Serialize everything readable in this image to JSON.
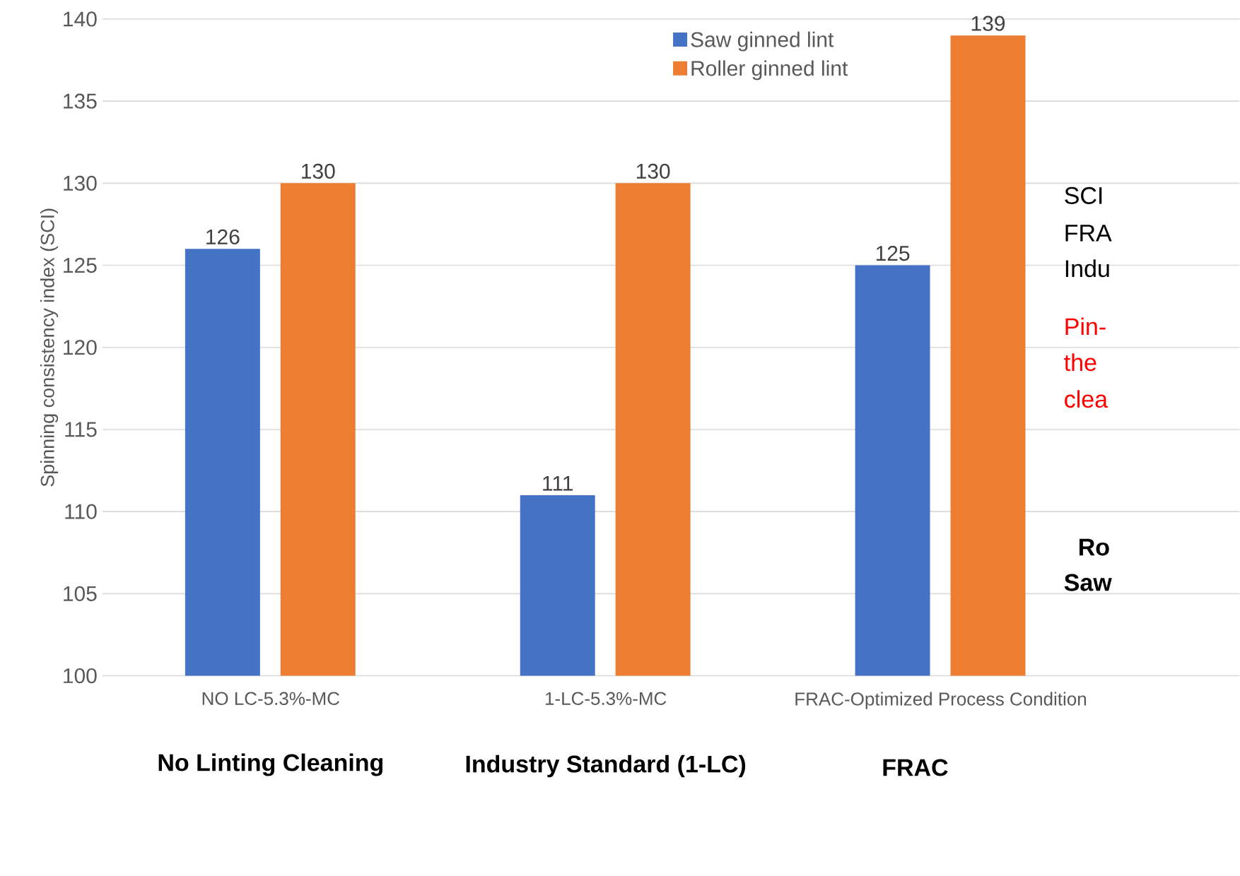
{
  "chart_data": {
    "type": "bar",
    "ylabel": "Spinning consistency index (SCI)",
    "categories": [
      "NO LC-5.3%-MC",
      "1-LC-5.3%-MC",
      "FRAC-Optimized Process Condition"
    ],
    "series": [
      {
        "name": "Saw ginned lint",
        "color": "#4472c4",
        "values": [
          126,
          111,
          125
        ]
      },
      {
        "name": "Roller ginned lint",
        "color": "#ed7d31",
        "values": [
          130,
          130,
          139
        ]
      }
    ],
    "ylim": [
      100,
      140
    ],
    "yticks": [
      100,
      105,
      110,
      115,
      120,
      125,
      130,
      135,
      140
    ],
    "grid": "y",
    "legend": "top",
    "data_labels": true,
    "annotations": [
      "No Linting Cleaning",
      "Industry Standard (1-LC)",
      "FRAC",
      "SCI",
      "FRA",
      "Indu",
      "Pin-",
      "the",
      "clea",
      "Ro",
      "Saw"
    ]
  }
}
